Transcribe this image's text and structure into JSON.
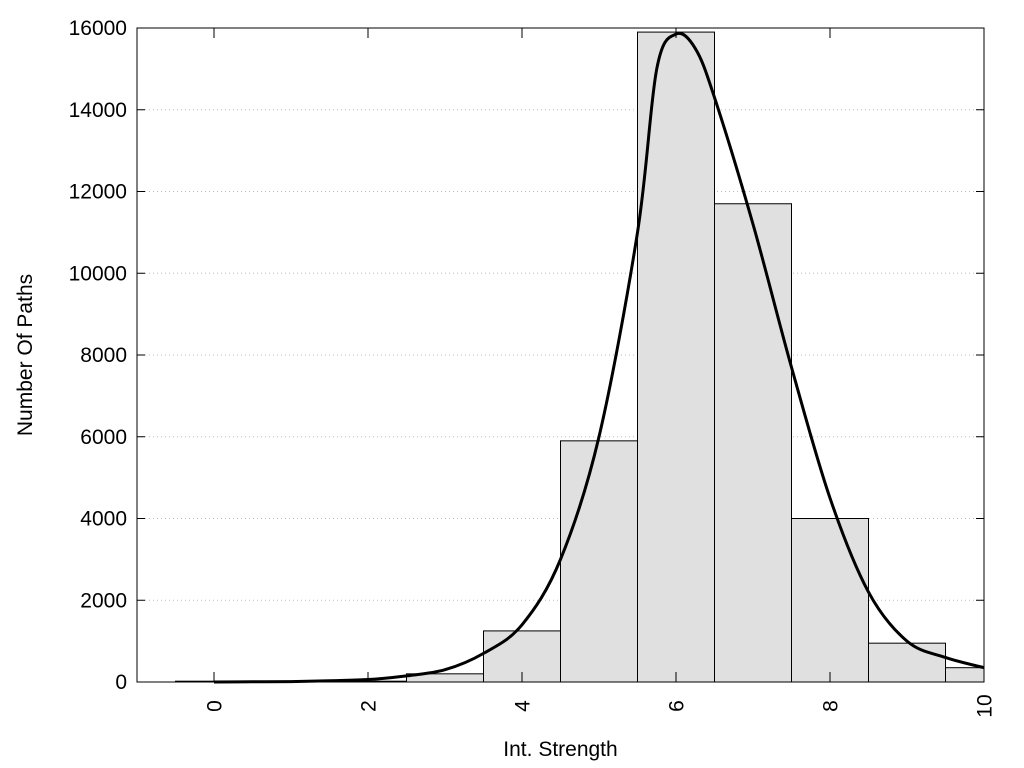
{
  "chart_data": {
    "type": "bar",
    "title": "",
    "xlabel": "Int. Strength",
    "ylabel": "Number Of Paths",
    "xlim": [
      -1,
      10
    ],
    "ylim": [
      0,
      16000
    ],
    "x_ticks": [
      "0",
      "2",
      "4",
      "6",
      "8",
      "10"
    ],
    "y_ticks": [
      "0",
      "2000",
      "4000",
      "6000",
      "8000",
      "10000",
      "12000",
      "14000",
      "16000"
    ],
    "grid": "horizontal-dotted",
    "bar_color": "#e0e0e0",
    "line_color": "#000000",
    "categories": [
      0,
      1,
      2,
      3,
      4,
      5,
      6,
      7,
      8,
      9,
      10
    ],
    "series": [
      {
        "type": "bar",
        "values": [
          20,
          10,
          20,
          200,
          1250,
          5900,
          15900,
          11700,
          4000,
          950,
          350
        ]
      },
      {
        "type": "line",
        "x": [
          0,
          0.5,
          1,
          1.5,
          2,
          2.5,
          3,
          3.5,
          4,
          4.5,
          5,
          5.5,
          5.75,
          6,
          6.25,
          6.5,
          7,
          7.5,
          8,
          8.5,
          9,
          9.5,
          10
        ],
        "y": [
          0,
          5,
          10,
          30,
          60,
          150,
          300,
          700,
          1400,
          3000,
          6000,
          11000,
          15000,
          15850,
          15500,
          14300,
          11200,
          7700,
          4500,
          2200,
          1000,
          600,
          350
        ]
      }
    ]
  }
}
